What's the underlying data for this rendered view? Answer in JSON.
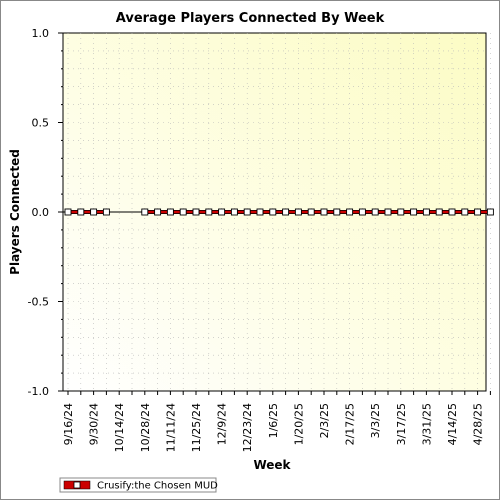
{
  "chart_data": {
    "type": "line",
    "title": "Average Players Connected By Week",
    "xlabel": "Week",
    "ylabel": "Players Connected",
    "ylim": [
      -1.0,
      1.0
    ],
    "y_ticks": [
      "1.0",
      "0.5",
      "0.0",
      "-0.5",
      "-1.0"
    ],
    "x_tick_labels": [
      "9/16/24",
      "9/30/24",
      "10/14/24",
      "10/28/24",
      "11/11/24",
      "11/25/24",
      "12/9/24",
      "12/23/24",
      "1/6/25",
      "1/20/25",
      "2/3/25",
      "2/17/25",
      "3/3/25",
      "3/17/25",
      "3/31/25",
      "4/14/25",
      "4/28/25"
    ],
    "weeks": [
      "9/16/24",
      "9/23/24",
      "9/30/24",
      "10/7/24",
      "10/14/24",
      "10/21/24",
      "10/28/24",
      "11/4/24",
      "11/11/24",
      "11/18/24",
      "11/25/24",
      "12/2/24",
      "12/9/24",
      "12/16/24",
      "12/23/24",
      "12/30/24",
      "1/6/25",
      "1/13/25",
      "1/20/25",
      "1/27/25",
      "2/3/25",
      "2/10/25",
      "2/17/25",
      "2/24/25",
      "3/3/25",
      "3/10/25",
      "3/17/25",
      "3/24/25",
      "3/31/25",
      "4/7/25",
      "4/14/25",
      "4/21/25",
      "4/28/25",
      "5/5/25"
    ],
    "grid": true,
    "legend_position": "bottom-left",
    "series": [
      {
        "name": "Crusify:the Chosen MUD",
        "color": "#cc0000",
        "segments": [
          [
            0,
            0,
            0,
            0
          ],
          [
            0,
            0,
            0,
            0,
            0,
            0,
            0,
            0,
            0,
            0,
            0,
            0,
            0,
            0,
            0,
            0,
            0,
            0,
            0,
            0,
            0,
            0,
            0,
            0,
            0,
            0,
            0,
            0
          ]
        ]
      }
    ]
  }
}
